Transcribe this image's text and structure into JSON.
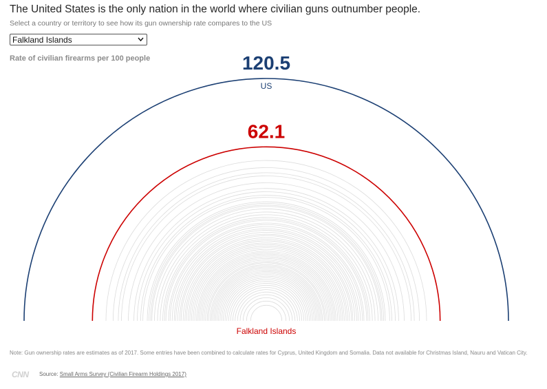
{
  "header": {
    "title": "The United States is the only nation in the world where civilian guns outnumber people.",
    "subtitle": "Select a country or territory to see how its gun ownership rate compares to the US"
  },
  "selector": {
    "selected": "Falkland Islands"
  },
  "chart_label": "Rate of civilian firearms per 100 people",
  "colors": {
    "us": "#1b3f73",
    "selected": "#cc0000",
    "other": "#dcdcdc"
  },
  "chart_data": {
    "type": "radial-semicircle",
    "title": "",
    "highlight": [
      {
        "name": "US",
        "value": 120.5,
        "value_label": "120.5"
      },
      {
        "name": "Falkland Islands",
        "value": 62.1,
        "value_label": "62.1"
      }
    ],
    "other_values": [
      52.8,
      48.2,
      45.0,
      43.1,
      39.1,
      36.0,
      34.2,
      32.4,
      31.3,
      29.1,
      28.3,
      27.5,
      26.9,
      25.7,
      24.3,
      23.1,
      22.0,
      21.3,
      20.7,
      19.6,
      19.0,
      18.2,
      17.4,
      16.8,
      16.1,
      15.4,
      14.9,
      14.2,
      13.6,
      13.1,
      12.5,
      12.0,
      11.5,
      11.0,
      10.5,
      10.0,
      9.6,
      9.2,
      8.8,
      8.4,
      8.0,
      7.6,
      7.2,
      6.9,
      6.5,
      6.2,
      5.9,
      5.6,
      5.3,
      5.0,
      4.7,
      4.4,
      4.1,
      3.8,
      3.5,
      3.2,
      2.9,
      2.6,
      2.3,
      2.0,
      1.7,
      1.4,
      1.1,
      0.8,
      0.5
    ],
    "max_value": 120.5
  },
  "footer": {
    "note": "Note: Gun ownership rates are estimates as of 2017. Some entries have been combined to calculate rates for Cyprus, United Kingdom and Somalia. Data not available for Christmas Island, Nauru and Vatican City.",
    "logo_text": "CNN",
    "source_prefix": "Source: ",
    "source_link": "Small Arms Survey (Civilian Firearm Holdings 2017)"
  }
}
